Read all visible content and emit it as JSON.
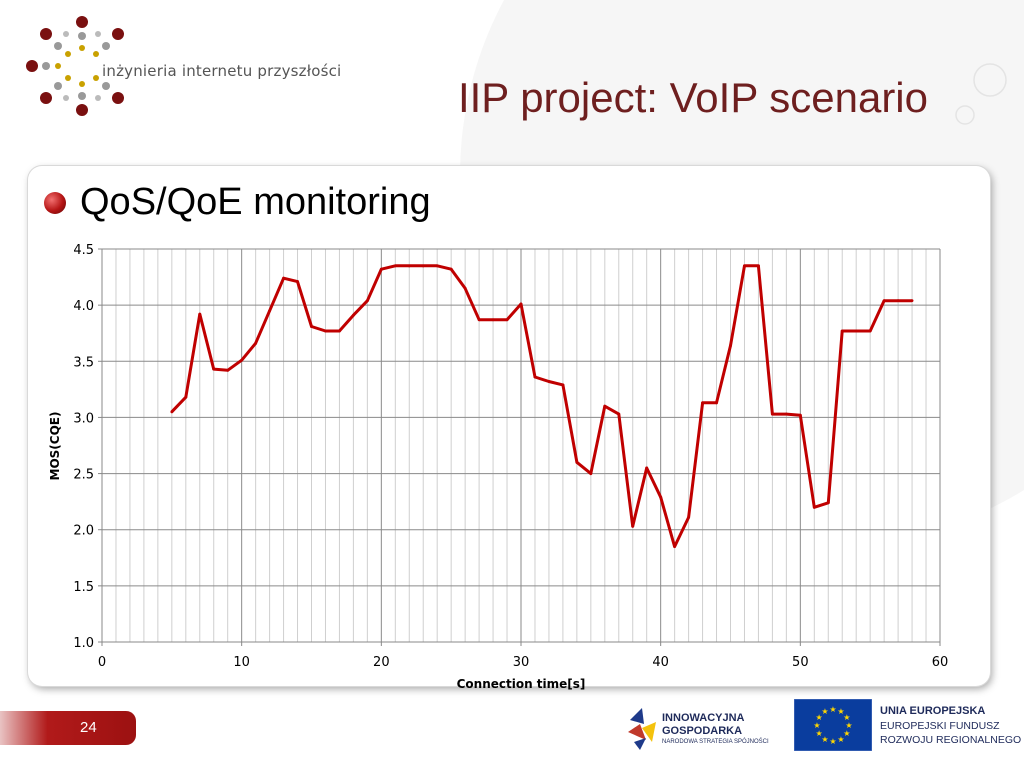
{
  "logo": {
    "text": "inżynieria internetu przyszłości"
  },
  "slide": {
    "title": "IIP project: VoIP scenario",
    "bullet": "QoS/QoE monitoring",
    "page_number": "24"
  },
  "footer": {
    "ig_line1": "INNOWACYJNA",
    "ig_line2": "GOSPODARKA",
    "ig_line3": "NARODOWA STRATEGIA SPÓJNOŚCI",
    "eu_line1": "UNIA EUROPEJSKA",
    "eu_line2": "EUROPEJSKI FUNDUSZ",
    "eu_line3": "ROZWOJU REGIONALNEGO"
  },
  "colors": {
    "line": "#c00000",
    "title": "#6e1f1f",
    "accent": "#b11a1a"
  },
  "chart_data": {
    "type": "line",
    "xlabel": "Connection time[s]",
    "ylabel": "MOS(CQE)",
    "xlim": [
      0,
      60
    ],
    "ylim": [
      1.0,
      4.5
    ],
    "xticks": [
      "0",
      "10",
      "20",
      "30",
      "40",
      "50",
      "60"
    ],
    "yticks": [
      "1.0",
      "1.5",
      "2.0",
      "2.5",
      "3.0",
      "3.5",
      "4.0",
      "4.5"
    ],
    "grid": true,
    "series": [
      {
        "name": "",
        "x": [
          5,
          6,
          7,
          8,
          9,
          10,
          11,
          12,
          13,
          14,
          15,
          16,
          17,
          18,
          19,
          20,
          21,
          22,
          23,
          24,
          25,
          26,
          27,
          28,
          29,
          30,
          31,
          32,
          33,
          34,
          35,
          36,
          37,
          38,
          39,
          40,
          41,
          42,
          43,
          44,
          45,
          46,
          47,
          48,
          49,
          50,
          51,
          52,
          53,
          54,
          55,
          56,
          57,
          58
        ],
        "y": [
          3.05,
          3.18,
          3.92,
          3.43,
          3.42,
          3.51,
          3.66,
          3.95,
          4.24,
          4.21,
          3.81,
          3.77,
          3.77,
          3.91,
          4.04,
          4.32,
          4.35,
          4.35,
          4.35,
          4.35,
          4.32,
          4.15,
          3.87,
          3.87,
          3.87,
          4.01,
          3.36,
          3.32,
          3.29,
          2.6,
          2.5,
          3.1,
          3.03,
          2.03,
          2.55,
          2.29,
          1.85,
          2.11,
          3.13,
          3.13,
          3.64,
          4.35,
          4.35,
          3.03,
          3.03,
          3.02,
          2.2,
          2.24,
          3.77,
          3.77,
          3.77,
          4.04,
          4.04,
          4.04
        ]
      }
    ]
  }
}
